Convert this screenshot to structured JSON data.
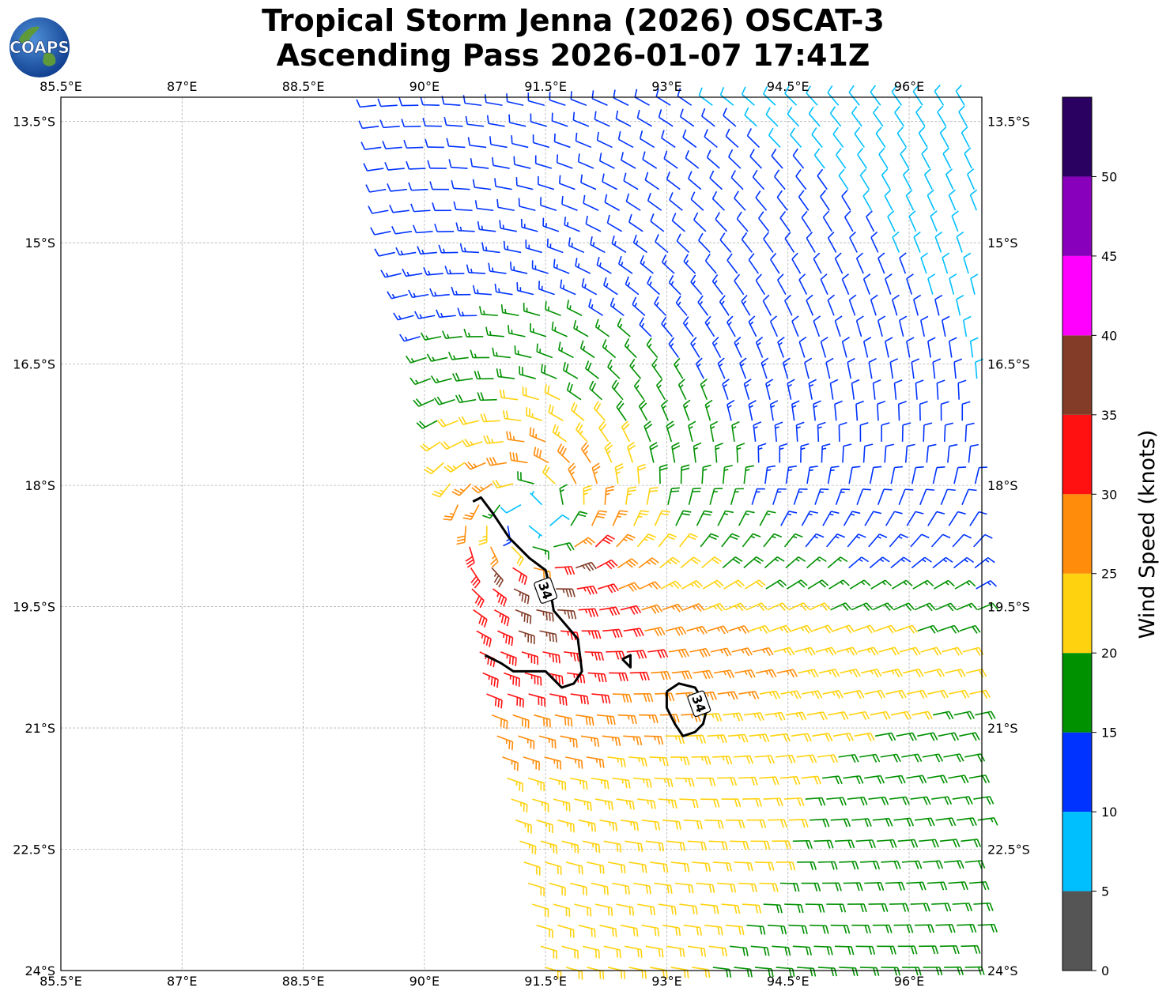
{
  "title": {
    "line1": "Tropical Storm Jenna (2026) OSCAT-3",
    "line2": "Ascending Pass 2026-01-07 17:41Z"
  },
  "logo": {
    "text": "COAPS",
    "icon": "coaps-globe-logo"
  },
  "map": {
    "lon_range": [
      85.5,
      96.9
    ],
    "lat_range": [
      -24.0,
      -13.2
    ],
    "lon_ticks": [
      {
        "value": 85.5,
        "label": "85.5°E"
      },
      {
        "value": 87.0,
        "label": "87°E"
      },
      {
        "value": 88.5,
        "label": "88.5°E"
      },
      {
        "value": 90.0,
        "label": "90°E"
      },
      {
        "value": 91.5,
        "label": "91.5°E"
      },
      {
        "value": 93.0,
        "label": "93°E"
      },
      {
        "value": 94.5,
        "label": "94.5°E"
      },
      {
        "value": 96.0,
        "label": "96°E"
      }
    ],
    "lat_ticks": [
      {
        "value": -13.5,
        "label": "13.5°S"
      },
      {
        "value": -15.0,
        "label": "15°S"
      },
      {
        "value": -16.5,
        "label": "16.5°S"
      },
      {
        "value": -18.0,
        "label": "18°S"
      },
      {
        "value": -19.5,
        "label": "19.5°S"
      },
      {
        "value": -21.0,
        "label": "21°S"
      },
      {
        "value": -22.5,
        "label": "22.5°S"
      },
      {
        "value": -24.0,
        "label": "24°S"
      }
    ],
    "grid": true,
    "storm_center": {
      "lon": 91.35,
      "lat": -18.45
    },
    "swath_west_edge": [
      [
        89.4,
        -13.25
      ],
      [
        89.6,
        -15.0
      ],
      [
        90.05,
        -16.5
      ],
      [
        90.25,
        -17.8
      ],
      [
        90.55,
        -18.6
      ],
      [
        90.6,
        -19.5
      ],
      [
        90.75,
        -20.5
      ],
      [
        91.0,
        -21.5
      ],
      [
        91.2,
        -22.5
      ],
      [
        91.4,
        -23.5
      ],
      [
        91.5,
        -24.0
      ]
    ],
    "contours": [
      {
        "label": "34",
        "label_pos": {
          "lon": 91.5,
          "lat": -19.3
        },
        "points": [
          [
            90.6,
            -18.2
          ],
          [
            90.7,
            -18.15
          ],
          [
            90.85,
            -18.35
          ],
          [
            91.05,
            -18.65
          ],
          [
            91.3,
            -18.9
          ],
          [
            91.5,
            -19.05
          ],
          [
            91.55,
            -19.25
          ],
          [
            91.6,
            -19.55
          ],
          [
            91.9,
            -19.9
          ],
          [
            91.95,
            -20.3
          ],
          [
            91.85,
            -20.45
          ],
          [
            91.7,
            -20.5
          ],
          [
            91.5,
            -20.3
          ],
          [
            91.1,
            -20.3
          ],
          [
            90.95,
            -20.2
          ],
          [
            90.75,
            -20.1
          ]
        ]
      },
      {
        "label": "34",
        "label_pos": {
          "lon": 93.4,
          "lat": -20.7
        },
        "points": [
          [
            93.0,
            -20.55
          ],
          [
            93.15,
            -20.45
          ],
          [
            93.35,
            -20.5
          ],
          [
            93.5,
            -20.75
          ],
          [
            93.45,
            -20.95
          ],
          [
            93.35,
            -21.05
          ],
          [
            93.2,
            -21.1
          ],
          [
            93.1,
            -20.95
          ],
          [
            93.0,
            -20.75
          ],
          [
            93.0,
            -20.55
          ]
        ]
      },
      {
        "label": "",
        "label_pos": null,
        "points": [
          [
            92.45,
            -20.15
          ],
          [
            92.55,
            -20.1
          ],
          [
            92.55,
            -20.25
          ],
          [
            92.45,
            -20.15
          ]
        ]
      }
    ]
  },
  "colorbar": {
    "label": "Wind Speed (knots)",
    "ticks": [
      "0",
      "5",
      "10",
      "15",
      "20",
      "25",
      "30",
      "35",
      "40",
      "45",
      "50"
    ],
    "bins": [
      {
        "min": 0,
        "max": 5,
        "color": "#555555"
      },
      {
        "min": 5,
        "max": 10,
        "color": "#00bfff"
      },
      {
        "min": 10,
        "max": 15,
        "color": "#0033ff"
      },
      {
        "min": 15,
        "max": 20,
        "color": "#009100"
      },
      {
        "min": 20,
        "max": 25,
        "color": "#ffd20f"
      },
      {
        "min": 25,
        "max": 30,
        "color": "#ff8c0a"
      },
      {
        "min": 30,
        "max": 35,
        "color": "#ff1111"
      },
      {
        "min": 35,
        "max": 40,
        "color": "#823c28"
      },
      {
        "min": 40,
        "max": 45,
        "color": "#ff00ff"
      },
      {
        "min": 45,
        "max": 50,
        "color": "#8800bb"
      },
      {
        "min": 50,
        "max": 55,
        "color": "#2a0060"
      }
    ]
  }
}
